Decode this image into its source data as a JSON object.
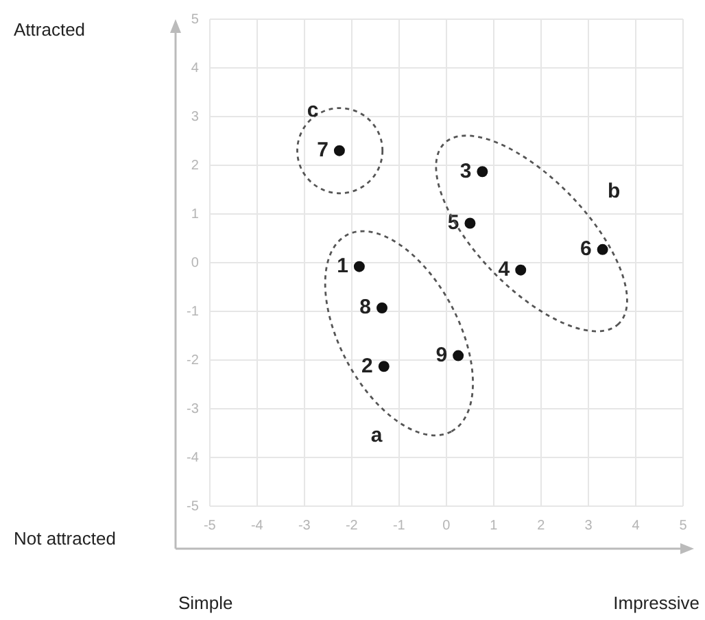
{
  "chart_data": {
    "type": "scatter",
    "grid": true,
    "marker": "circle",
    "xlim": [
      -5,
      5
    ],
    "ylim": [
      -5,
      5
    ],
    "xticks": [
      -5,
      -4,
      -3,
      -2,
      -1,
      0,
      1,
      2,
      3,
      4,
      5
    ],
    "yticks": [
      -5,
      -4,
      -3,
      -2,
      -1,
      0,
      1,
      2,
      3,
      4,
      5
    ],
    "series": [
      {
        "color": "#111111",
        "x": [
          -1.84,
          -1.32,
          0.76,
          1.57,
          0.5,
          3.3,
          -2.26,
          -1.36,
          0.25
        ],
        "values": [
          -0.08,
          -2.13,
          1.87,
          -0.15,
          0.81,
          0.27,
          2.3,
          -0.93,
          -1.91
        ]
      }
    ],
    "annotations": [
      "Attracted",
      "Not attracted",
      "Simple",
      "Impressive",
      {
        "text": "1",
        "x": -1.84,
        "y": -0.08
      },
      {
        "text": "2",
        "x": -1.32,
        "y": -2.13
      },
      {
        "text": "3",
        "x": 0.76,
        "y": 1.87
      },
      {
        "text": "4",
        "x": 1.57,
        "y": -0.15
      },
      {
        "text": "5",
        "x": 0.5,
        "y": 0.81
      },
      {
        "text": "6",
        "x": 3.3,
        "y": 0.27
      },
      {
        "text": "7",
        "x": -2.26,
        "y": 2.3
      },
      {
        "text": "8",
        "x": -1.36,
        "y": -0.93
      },
      {
        "text": "9",
        "x": 0.25,
        "y": -1.91
      },
      "a",
      "b",
      "c"
    ]
  }
}
